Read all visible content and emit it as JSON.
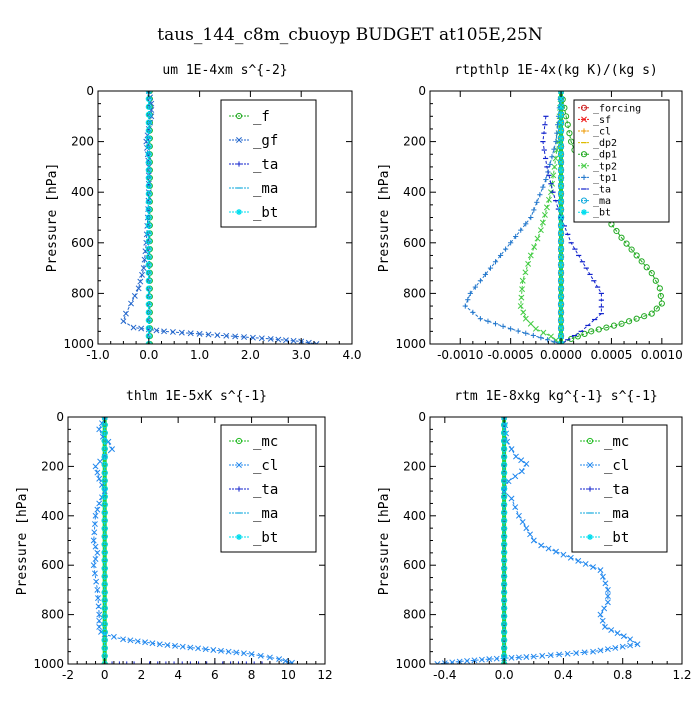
{
  "figure_title": "taus_144_c8m_cbuoyp  BUDGET at105E,25N",
  "colors": {
    "f": "#22aa22",
    "gf": "#2266cc",
    "ta": "#1122cc",
    "ma": "#11aadd",
    "bt": "#00ddee",
    "forcing": "#cc2222",
    "sf": "#ee1111",
    "cl_orange": "#ee9900",
    "dp2": "#ddbb00",
    "dp1": "#22aa22",
    "tp2": "#44cc44",
    "tp1": "#2277cc",
    "mc": "#22bb22",
    "cl_blue": "#2288ee",
    "thick_green": "#33cc33"
  },
  "chart_data": [
    {
      "type": "line",
      "subtitle": "um  1E-4xm s^{-2}",
      "ylabel": "Pressure [hPa]",
      "xlim": [
        -1.0,
        4.0
      ],
      "ylim": [
        1000,
        0
      ],
      "xticks": [
        -1.0,
        0.0,
        1.0,
        2.0,
        3.0,
        4.0
      ],
      "xtick_labels": [
        "-1.0",
        "0.0",
        "1.0",
        "2.0",
        "3.0",
        "4.0"
      ],
      "yticks": [
        0,
        200,
        400,
        600,
        800,
        1000
      ],
      "ytick_labels": [
        "0",
        "200",
        "400",
        "600",
        "800",
        "1000"
      ],
      "legend": [
        "_f",
        "_gf",
        "_ta",
        "_ma",
        "_bt"
      ],
      "legend_position": "top-right",
      "series": [
        {
          "name": "_f",
          "color_key": "f",
          "x": [
            0.02,
            0.02
          ],
          "y": [
            0,
            1000
          ]
        },
        {
          "name": "_gf",
          "color_key": "gf",
          "x": [
            0.0,
            0.05,
            0.05,
            0.0,
            -0.05,
            -0.02,
            0.0,
            0.0,
            -0.02,
            -0.05,
            -0.1,
            -0.2,
            -0.35,
            -0.45,
            -0.5,
            -0.3,
            0.3,
            1.0,
            1.7,
            2.4,
            3.0,
            3.3
          ],
          "y": [
            0,
            50,
            100,
            150,
            200,
            250,
            300,
            400,
            500,
            600,
            700,
            780,
            840,
            880,
            910,
            935,
            950,
            960,
            970,
            980,
            990,
            1000
          ]
        },
        {
          "name": "_ta",
          "color_key": "ta",
          "x": [
            0.0,
            0.0
          ],
          "y": [
            0,
            1000
          ]
        },
        {
          "name": "_ma",
          "color_key": "ma",
          "x": [
            0.0,
            0.0
          ],
          "y": [
            0,
            1000
          ]
        },
        {
          "name": "_bt",
          "color_key": "bt",
          "x": [
            0.0,
            0.0
          ],
          "y": [
            0,
            1000
          ]
        }
      ]
    },
    {
      "type": "line",
      "subtitle": "rtpthlp  1E-4x(kg K)/(kg s)",
      "ylabel": "Pressure [hPa]",
      "xlim": [
        -0.0013,
        0.0012
      ],
      "ylim": [
        1000,
        0
      ],
      "xticks": [
        -0.001,
        -0.0005,
        0.0,
        0.0005,
        0.001
      ],
      "xtick_labels": [
        "-0.0010",
        "-0.0005",
        "0.0000",
        "0.0005",
        "0.0010"
      ],
      "yticks": [
        0,
        200,
        400,
        600,
        800,
        1000
      ],
      "ytick_labels": [
        "0",
        "200",
        "400",
        "600",
        "800",
        "1000"
      ],
      "legend": [
        "_forcing",
        "_sf",
        "_cl",
        "_dp2",
        "_dp1",
        "_tp2",
        "_tp1",
        "_ta",
        "_ma",
        "_bt"
      ],
      "legend_position": "top-right",
      "series": [
        {
          "name": "_forcing",
          "color_key": "forcing",
          "x": [
            0.0,
            0.0
          ],
          "y": [
            0,
            1000
          ]
        },
        {
          "name": "_sf",
          "color_key": "sf",
          "x": [
            0.0,
            0.0
          ],
          "y": [
            0,
            1000
          ]
        },
        {
          "name": "_cl",
          "color_key": "cl_orange",
          "x": [
            0.0,
            0.0
          ],
          "y": [
            0,
            1000
          ]
        },
        {
          "name": "_dp2",
          "color_key": "dp2",
          "x": [
            0.0,
            0.0
          ],
          "y": [
            0,
            1000
          ]
        },
        {
          "name": "_dp1",
          "color_key": "dp1",
          "x": [
            0.0,
            5e-05,
            0.0001,
            0.0002,
            0.0003,
            0.00045,
            0.0006,
            0.00075,
            0.0009,
            0.00098,
            0.001,
            0.0009,
            0.0006,
            0.0003,
            0.0001,
            0.0
          ],
          "y": [
            0,
            100,
            200,
            300,
            400,
            500,
            580,
            650,
            720,
            780,
            840,
            880,
            920,
            950,
            980,
            1000
          ]
        },
        {
          "name": "_tp2",
          "color_key": "tp2",
          "x": [
            0.0,
            -3e-05,
            -0.0001,
            -0.0002,
            -0.0003,
            -0.00038,
            -0.0004,
            -0.00035,
            -0.00025,
            -0.0001,
            0.0
          ],
          "y": [
            0,
            200,
            400,
            550,
            650,
            750,
            850,
            900,
            940,
            970,
            1000
          ]
        },
        {
          "name": "_tp1",
          "color_key": "tp1",
          "x": [
            0.0,
            -5e-05,
            -0.00015,
            -0.0003,
            -0.0005,
            -0.0007,
            -0.0009,
            -0.00095,
            -0.0008,
            -0.0005,
            -0.0002,
            0.0
          ],
          "y": [
            0,
            200,
            350,
            500,
            600,
            700,
            800,
            850,
            900,
            940,
            975,
            1000
          ]
        },
        {
          "name": "_ta",
          "color_key": "ta",
          "x": [
            -0.00015,
            -0.00018,
            -0.00014,
            -8e-05,
            0.0,
            0.0001,
            0.00025,
            0.0004,
            0.0004,
            0.0002,
            0.0
          ],
          "y": [
            100,
            200,
            300,
            400,
            500,
            600,
            700,
            800,
            880,
            950,
            1000
          ]
        },
        {
          "name": "_ma",
          "color_key": "ma",
          "x": [
            0.0,
            0.0
          ],
          "y": [
            0,
            1000
          ]
        },
        {
          "name": "_bt",
          "color_key": "bt",
          "x": [
            0.0,
            0.0
          ],
          "y": [
            0,
            1000
          ]
        }
      ]
    },
    {
      "type": "line",
      "subtitle": "thlm  1E-5xK s^{-1}",
      "ylabel": "Pressure [hPa]",
      "xlim": [
        -2,
        12
      ],
      "ylim": [
        1000,
        0
      ],
      "xticks": [
        -2,
        0,
        2,
        4,
        6,
        8,
        10,
        12
      ],
      "xtick_labels": [
        "-2",
        "0",
        "2",
        "4",
        "6",
        "8",
        "10",
        "12"
      ],
      "yticks": [
        0,
        200,
        400,
        600,
        800,
        1000
      ],
      "ytick_labels": [
        "0",
        "200",
        "400",
        "600",
        "800",
        "1000"
      ],
      "legend": [
        "_mc",
        "_cl",
        "_ta",
        "_ma",
        "_bt"
      ],
      "legend_position": "top-right",
      "series": [
        {
          "name": "_mc",
          "color_key": "mc",
          "x": [
            0.0,
            0.0
          ],
          "y": [
            0,
            1000
          ]
        },
        {
          "name": "_cl",
          "color_key": "cl_blue",
          "x": [
            0.0,
            -0.3,
            -0.1,
            0.2,
            0.4,
            0.0,
            -0.5,
            -0.3,
            0.0,
            -0.3,
            -0.5,
            -0.6,
            -0.4,
            -0.6,
            -0.4,
            -0.3,
            -0.3,
            -0.2,
            0.0,
            1.0,
            3.0,
            5.5,
            8.0,
            9.5,
            10.2,
            10.0
          ],
          "y": [
            0,
            50,
            80,
            100,
            130,
            160,
            200,
            250,
            300,
            350,
            400,
            500,
            550,
            600,
            700,
            800,
            850,
            870,
            880,
            900,
            920,
            940,
            960,
            980,
            995,
            1000
          ]
        },
        {
          "name": "_ta",
          "color_key": "ta",
          "x": [
            0.0,
            2.0,
            6.0,
            9.0
          ],
          "y": [
            1000,
            1000,
            1000,
            1000
          ]
        },
        {
          "name": "_ma",
          "color_key": "ma",
          "x": [
            0.0,
            0.0
          ],
          "y": [
            0,
            1000
          ]
        },
        {
          "name": "_bt",
          "color_key": "bt",
          "x": [
            0.0,
            0.0
          ],
          "y": [
            0,
            1000
          ]
        }
      ]
    },
    {
      "type": "line",
      "subtitle": "rtm  1E-8xkg kg^{-1} s^{-1}",
      "ylabel": "Pressure [hPa]",
      "xlim": [
        -0.5,
        1.2
      ],
      "ylim": [
        1000,
        0
      ],
      "xticks": [
        -0.4,
        0.0,
        0.4,
        0.8,
        1.2
      ],
      "xtick_labels": [
        "-0.4",
        "0.0",
        "0.4",
        "0.8",
        "1.2"
      ],
      "yticks": [
        0,
        200,
        400,
        600,
        800,
        1000
      ],
      "ytick_labels": [
        "0",
        "200",
        "400",
        "600",
        "800",
        "1000"
      ],
      "legend": [
        "_mc",
        "_cl",
        "_ta",
        "_ma",
        "_bt"
      ],
      "legend_position": "top-right",
      "series": [
        {
          "name": "_mc",
          "color_key": "mc",
          "x": [
            0.0,
            0.0
          ],
          "y": [
            0,
            1000
          ]
        },
        {
          "name": "_cl",
          "color_key": "cl_blue",
          "x": [
            0.0,
            0.02,
            0.08,
            0.15,
            0.12,
            0.03,
            0.0,
            0.05,
            0.1,
            0.15,
            0.2,
            0.25,
            0.65,
            0.7,
            0.7,
            0.65,
            0.68,
            0.85,
            0.9,
            0.6,
            0.2,
            -0.1,
            -0.3,
            -0.45
          ],
          "y": [
            0,
            100,
            160,
            190,
            220,
            260,
            300,
            330,
            400,
            450,
            500,
            520,
            620,
            700,
            750,
            800,
            850,
            900,
            920,
            950,
            970,
            980,
            990,
            1000
          ]
        },
        {
          "name": "_ta",
          "color_key": "ta",
          "x": [
            0.0,
            0.0
          ],
          "y": [
            0,
            1000
          ]
        },
        {
          "name": "_ma",
          "color_key": "ma",
          "x": [
            0.0,
            0.0
          ],
          "y": [
            0,
            1000
          ]
        },
        {
          "name": "_bt",
          "color_key": "bt",
          "x": [
            0.0,
            0.0
          ],
          "y": [
            0,
            1000
          ]
        }
      ]
    }
  ]
}
